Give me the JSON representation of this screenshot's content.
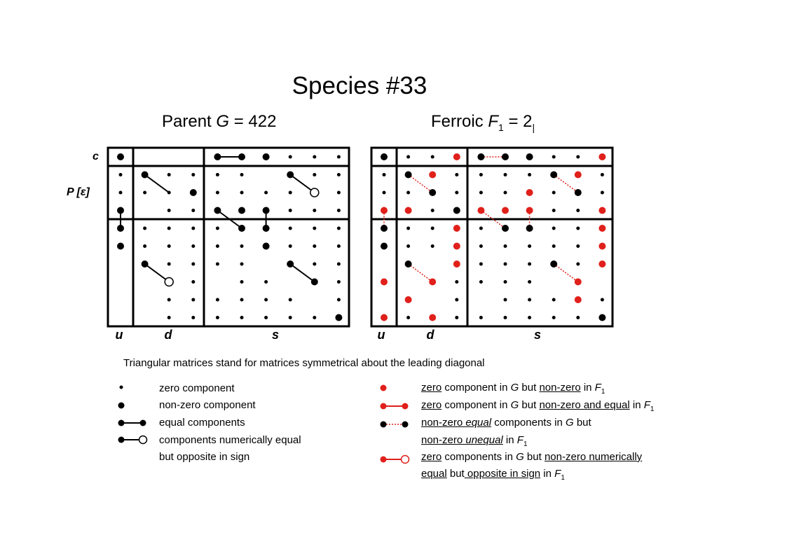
{
  "title": "Species  #33",
  "parent": {
    "prefix": "Parent  ",
    "symbol": "G",
    "value": " = 422"
  },
  "ferroic": {
    "prefix": "Ferroic  ",
    "symbol": "F",
    "sub": "1",
    "value": " = 2",
    "value_sub": "|"
  },
  "row_labels": {
    "c": "c",
    "p": "P  [ε]"
  },
  "col_labels": {
    "u": "u",
    "d": "d",
    "s": "s"
  },
  "note": "Triangular matrices stand for matrices symmetrical about the leading diagonal",
  "legend_left": {
    "zero": "zero component",
    "nonzero": "non-zero component",
    "equal": "equal components",
    "opposite_1": "components numerically equal",
    "opposite_2": "but opposite in sign"
  },
  "legend_right": {
    "l1": {
      "a": "zero",
      "b": " component in ",
      "c": "G",
      "d": " but ",
      "e": "non-zero",
      "f": " in ",
      "g": "F",
      "h": "1"
    },
    "l2": {
      "a": "zero",
      "b": " component in ",
      "c": "G",
      "d": " but ",
      "e": "non-zero and equal",
      "f": " in ",
      "g": "F",
      "h": "1"
    },
    "l3": {
      "a": "non-zero ",
      "b": "equal",
      "c": "  components in ",
      "d": "G",
      "e": "  but"
    },
    "l4": {
      "a": "non-zero ",
      "b": "unequal",
      "c": "  in ",
      "d": "F",
      "e": "1"
    },
    "l5": {
      "a": "zero",
      "b": " components in ",
      "c": "G",
      "d": " but ",
      "e": "non-zero numerically "
    },
    "l6": {
      "a": "equal",
      "b": " but",
      "c": " opposite in sign",
      "d": " in ",
      "e": "F",
      "f": "1"
    }
  },
  "colors": {
    "ink": "#000000",
    "red": "#e0201b"
  },
  "matrices": {
    "parent": {
      "small": [
        [
          1,
          0
        ],
        [
          1,
          1
        ],
        [
          1,
          2
        ],
        [
          1,
          3
        ],
        [
          1,
          4
        ],
        [
          1,
          5
        ],
        [
          2,
          0
        ],
        [
          2,
          1
        ],
        [
          2,
          2
        ],
        [
          2,
          3
        ],
        [
          2,
          4
        ],
        [
          2,
          5
        ],
        [
          3,
          0
        ],
        [
          3,
          2
        ],
        [
          3,
          3
        ],
        [
          3,
          4
        ],
        [
          3,
          6
        ],
        [
          4,
          0
        ],
        [
          4,
          1
        ],
        [
          4,
          2
        ],
        [
          4,
          3
        ],
        [
          4,
          4
        ],
        [
          4,
          5
        ],
        [
          5,
          1
        ],
        [
          5,
          2
        ],
        [
          5,
          3
        ],
        [
          5,
          4
        ],
        [
          5,
          5
        ],
        [
          6,
          2
        ],
        [
          6,
          3
        ],
        [
          6,
          4
        ],
        [
          6,
          5
        ],
        [
          7,
          2
        ],
        [
          7,
          3
        ],
        [
          7,
          5
        ],
        [
          8,
          2
        ],
        [
          8,
          3
        ],
        [
          8,
          4
        ],
        [
          8,
          5
        ],
        [
          9,
          2
        ],
        [
          9,
          3
        ],
        [
          9,
          4
        ],
        [
          9,
          5
        ],
        [
          0,
          6
        ],
        [
          0,
          7
        ],
        [
          0,
          8
        ],
        [
          1,
          7
        ],
        [
          1,
          8
        ],
        [
          2,
          6
        ],
        [
          2,
          7
        ],
        [
          2,
          8
        ],
        [
          3,
          7
        ],
        [
          3,
          8
        ],
        [
          4,
          6
        ],
        [
          4,
          7
        ],
        [
          4,
          8
        ],
        [
          5,
          6
        ],
        [
          5,
          7
        ],
        [
          5,
          8
        ],
        [
          6,
          7
        ],
        [
          6,
          8
        ],
        [
          7,
          6
        ],
        [
          7,
          8
        ],
        [
          8,
          6
        ],
        [
          8,
          7
        ],
        [
          9,
          6
        ],
        [
          9,
          7
        ],
        [
          9,
          8
        ],
        [
          0,
          9
        ],
        [
          1,
          9
        ],
        [
          2,
          9
        ],
        [
          3,
          9
        ],
        [
          4,
          9
        ],
        [
          5,
          9
        ],
        [
          6,
          9
        ],
        [
          7,
          9
        ],
        [
          8,
          9
        ]
      ],
      "big": [
        [
          0,
          0
        ],
        [
          0,
          4
        ],
        [
          0,
          5
        ],
        [
          0,
          6
        ],
        [
          1,
          1
        ],
        [
          1,
          7
        ],
        [
          2,
          3
        ],
        [
          3,
          4
        ],
        [
          3,
          5
        ],
        [
          3,
          6
        ],
        [
          3,
          0
        ],
        [
          4,
          0
        ],
        [
          4,
          5
        ],
        [
          4,
          6
        ],
        [
          5,
          0
        ],
        [
          5,
          6
        ],
        [
          6,
          1
        ],
        [
          6,
          7
        ],
        [
          7,
          8
        ],
        [
          9,
          9
        ]
      ],
      "hollow": [
        [
          2,
          8
        ],
        [
          7,
          2
        ]
      ],
      "lines": [
        [
          [
            0,
            4
          ],
          [
            0,
            5
          ]
        ],
        [
          [
            1,
            1
          ],
          [
            2,
            2
          ]
        ],
        [
          [
            1,
            7
          ],
          [
            2,
            8
          ]
        ],
        [
          [
            3,
            0
          ],
          [
            4,
            0
          ]
        ],
        [
          [
            3,
            4
          ],
          [
            4,
            5
          ]
        ],
        [
          [
            3,
            6
          ],
          [
            4,
            6
          ]
        ],
        [
          [
            6,
            1
          ],
          [
            7,
            2
          ]
        ],
        [
          [
            6,
            7
          ],
          [
            7,
            8
          ]
        ]
      ]
    },
    "ferroic": {
      "small": [
        [
          0,
          1
        ],
        [
          0,
          2
        ],
        [
          0,
          7
        ],
        [
          0,
          8
        ],
        [
          1,
          0
        ],
        [
          1,
          3
        ],
        [
          1,
          4
        ],
        [
          1,
          5
        ],
        [
          1,
          6
        ],
        [
          1,
          9
        ],
        [
          2,
          0
        ],
        [
          2,
          1
        ],
        [
          2,
          3
        ],
        [
          2,
          4
        ],
        [
          2,
          5
        ],
        [
          2,
          6
        ],
        [
          2,
          7
        ],
        [
          2,
          9
        ],
        [
          3,
          1
        ],
        [
          3,
          2
        ],
        [
          3,
          7
        ],
        [
          3,
          8
        ],
        [
          3,
          2
        ],
        [
          4,
          1
        ],
        [
          4,
          2
        ],
        [
          4,
          4
        ],
        [
          4,
          7
        ],
        [
          4,
          8
        ],
        [
          4,
          9
        ],
        [
          5,
          1
        ],
        [
          5,
          2
        ],
        [
          5,
          3
        ],
        [
          5,
          4
        ],
        [
          5,
          5
        ],
        [
          5,
          6
        ],
        [
          5,
          7
        ],
        [
          5,
          8
        ],
        [
          6,
          3
        ],
        [
          6,
          4
        ],
        [
          6,
          5
        ],
        [
          6,
          6
        ],
        [
          6,
          8
        ],
        [
          6,
          9
        ],
        [
          7,
          3
        ],
        [
          7,
          4
        ],
        [
          7,
          5
        ],
        [
          7,
          6
        ],
        [
          8,
          3
        ],
        [
          8,
          5
        ],
        [
          8,
          6
        ],
        [
          8,
          7
        ],
        [
          8,
          9
        ],
        [
          9,
          1
        ],
        [
          9,
          2
        ],
        [
          9,
          3
        ],
        [
          9,
          4
        ],
        [
          9,
          5
        ],
        [
          9,
          6
        ],
        [
          9,
          7
        ],
        [
          9,
          8
        ]
      ],
      "big": [
        [
          0,
          0
        ],
        [
          0,
          4
        ],
        [
          0,
          5
        ],
        [
          0,
          6
        ],
        [
          1,
          1
        ],
        [
          1,
          7
        ],
        [
          2,
          2
        ],
        [
          2,
          8
        ],
        [
          3,
          0
        ],
        [
          3,
          3
        ],
        [
          3,
          4
        ],
        [
          3,
          5
        ],
        [
          3,
          6
        ],
        [
          4,
          0
        ],
        [
          4,
          5
        ],
        [
          4,
          6
        ],
        [
          5,
          0
        ],
        [
          6,
          1
        ],
        [
          6,
          7
        ],
        [
          7,
          2
        ],
        [
          7,
          8
        ],
        [
          9,
          9
        ],
        [
          9,
          0
        ]
      ],
      "red": [
        [
          0,
          3
        ],
        [
          0,
          9
        ],
        [
          1,
          2
        ],
        [
          1,
          8
        ],
        [
          2,
          6
        ],
        [
          3,
          0
        ],
        [
          3,
          1
        ],
        [
          3,
          4
        ],
        [
          3,
          5
        ],
        [
          3,
          6
        ],
        [
          3,
          9
        ],
        [
          4,
          3
        ],
        [
          4,
          9
        ],
        [
          5,
          3
        ],
        [
          5,
          9
        ],
        [
          6,
          3
        ],
        [
          6,
          9
        ],
        [
          7,
          0
        ],
        [
          7,
          2
        ],
        [
          7,
          8
        ],
        [
          8,
          1
        ],
        [
          8,
          8
        ],
        [
          9,
          0
        ],
        [
          9,
          2
        ]
      ],
      "lines": [
        [
          [
            0,
            4
          ],
          [
            0,
            5
          ]
        ],
        [
          [
            1,
            1
          ],
          [
            2,
            2
          ]
        ],
        [
          [
            1,
            7
          ],
          [
            2,
            8
          ]
        ],
        [
          [
            3,
            0
          ],
          [
            4,
            0
          ]
        ],
        [
          [
            3,
            4
          ],
          [
            4,
            5
          ]
        ],
        [
          [
            3,
            6
          ],
          [
            4,
            6
          ]
        ],
        [
          [
            6,
            1
          ],
          [
            7,
            2
          ]
        ],
        [
          [
            6,
            7
          ],
          [
            7,
            8
          ]
        ]
      ]
    }
  }
}
